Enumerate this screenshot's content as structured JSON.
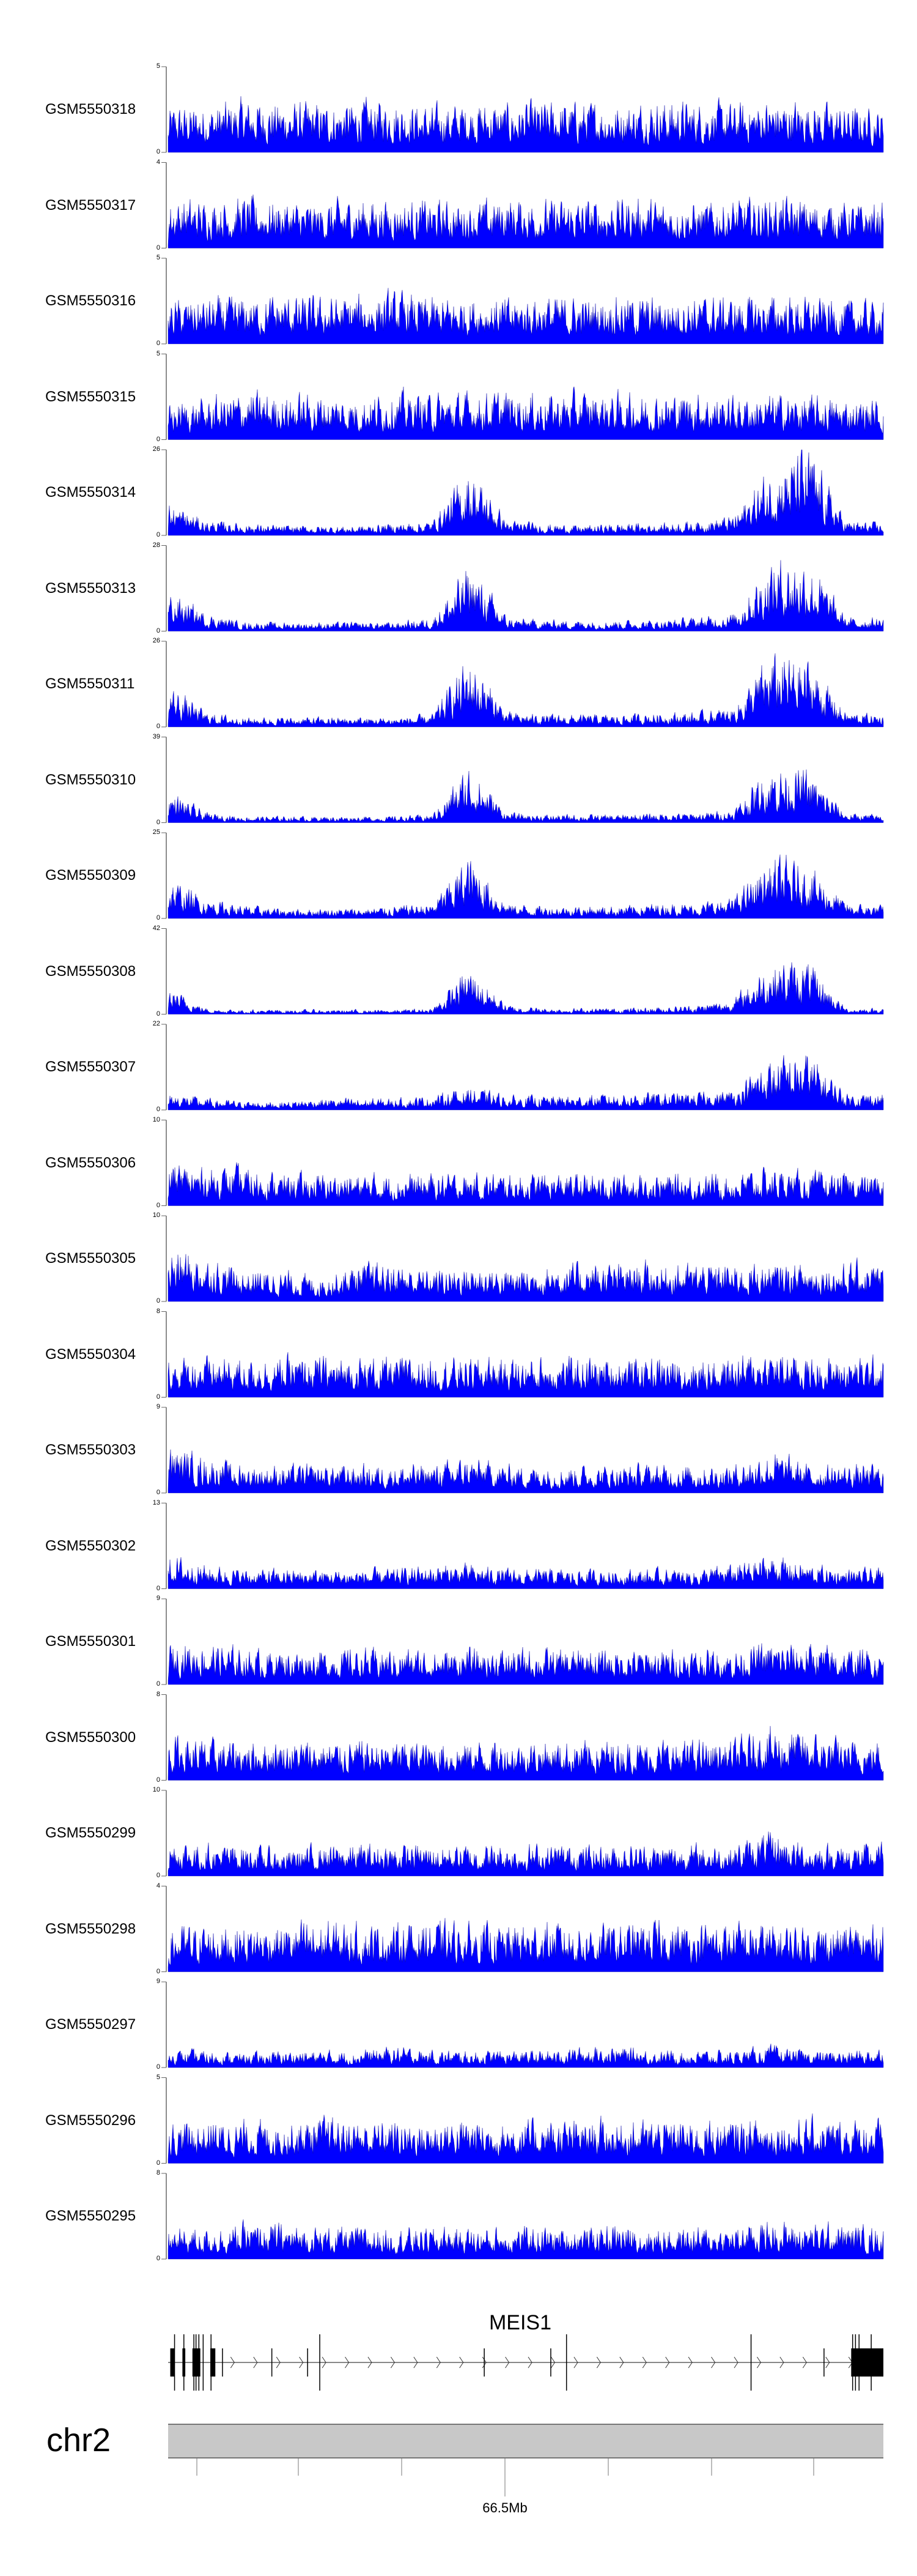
{
  "chart_data": {
    "type": "area",
    "title": "",
    "chromosome": "chr2",
    "gene": "MEIS1",
    "axis_tick_labels": [
      "66.5Mb"
    ],
    "ymin": 0,
    "fill_color": "#0000ff",
    "tracks": [
      {
        "name": "GSM5550318",
        "ymax": 5,
        "profile": [
          1.8,
          1.9,
          2.1,
          2,
          1.9,
          2,
          2.1,
          1.8,
          2,
          1.9,
          2,
          2,
          1.9,
          2.1,
          2,
          1.9,
          2.1,
          2,
          1.8,
          1.7
        ]
      },
      {
        "name": "GSM5550317",
        "ymax": 4,
        "profile": [
          1.6,
          1.5,
          1.6,
          1.5,
          1.4,
          1.6,
          1.5,
          1.5,
          1.4,
          1.6,
          1.5,
          1.5,
          1.6,
          1.5,
          1.4,
          1.5,
          1.6,
          1.5,
          1.4,
          1.4
        ]
      },
      {
        "name": "GSM5550316",
        "ymax": 5,
        "profile": [
          1.7,
          1.8,
          1.8,
          1.9,
          1.8,
          1.9,
          2,
          1.8,
          1.9,
          1.8,
          1.9,
          1.8,
          1.9,
          1.8,
          1.9,
          1.8,
          1.9,
          1.8,
          1.7,
          1.7
        ]
      },
      {
        "name": "GSM5550315",
        "ymax": 5,
        "profile": [
          1.5,
          1.6,
          1.9,
          1.8,
          1.8,
          1.7,
          1.9,
          1.8,
          1.8,
          1.9,
          1.8,
          1.9,
          1.8,
          1.8,
          1.9,
          1.7,
          1.8,
          1.7,
          1.6,
          1.6
        ]
      },
      {
        "name": "GSM5550314",
        "ymax": 26,
        "profile": [
          7,
          3,
          2.5,
          2,
          2,
          2,
          2.5,
          3,
          14,
          3,
          2.5,
          2,
          2.5,
          2.5,
          3,
          4,
          14,
          18,
          3,
          2.5
        ]
      },
      {
        "name": "GSM5550313",
        "ymax": 28,
        "profile": [
          9,
          4,
          2,
          2,
          2,
          2,
          2,
          3,
          15,
          3,
          2.5,
          2.5,
          2.5,
          2.5,
          3,
          4,
          16,
          16,
          3,
          3
        ]
      },
      {
        "name": "GSM5550311",
        "ymax": 26,
        "profile": [
          9,
          3,
          2,
          2,
          2,
          2,
          2,
          2.5,
          15,
          3,
          2.5,
          2.5,
          2.5,
          3,
          3,
          4,
          15,
          14,
          3,
          2.5
        ]
      },
      {
        "name": "GSM5550310",
        "ymax": 39,
        "profile": [
          10,
          3,
          2,
          2,
          2,
          2,
          2,
          2.5,
          18,
          3,
          2.5,
          2.5,
          2.5,
          3,
          3,
          4,
          18,
          16,
          3,
          2.5
        ]
      },
      {
        "name": "GSM5550309",
        "ymax": 25,
        "profile": [
          8,
          4,
          2.5,
          2,
          2,
          2,
          2.5,
          3,
          13,
          3,
          2.5,
          2.5,
          2.5,
          3,
          3,
          4,
          12,
          11,
          3,
          2.5
        ]
      },
      {
        "name": "GSM5550308",
        "ymax": 42,
        "profile": [
          9,
          2,
          1.5,
          1.5,
          1.5,
          1.5,
          1.5,
          2,
          16,
          3,
          2,
          2,
          2,
          2.5,
          3,
          5,
          18,
          17,
          2,
          2
        ]
      },
      {
        "name": "GSM5550307",
        "ymax": 22,
        "profile": [
          3,
          2,
          1.5,
          1.5,
          2,
          2,
          2,
          2.5,
          4,
          2.5,
          2.5,
          2.5,
          3,
          3,
          3,
          3.5,
          9,
          10,
          3,
          3
        ]
      },
      {
        "name": "GSM5550306",
        "ymax": 10,
        "profile": [
          3.5,
          3,
          3,
          2.5,
          2.5,
          2.5,
          2.5,
          2.5,
          2.5,
          2.5,
          2.5,
          2.5,
          2.5,
          2.5,
          2.5,
          2.5,
          3,
          2.5,
          2.5,
          2.5
        ]
      },
      {
        "name": "GSM5550305",
        "ymax": 10,
        "profile": [
          4.5,
          3.5,
          2.5,
          2.5,
          2,
          3,
          3,
          2.5,
          3,
          2.5,
          3,
          3,
          3,
          3,
          3,
          3,
          3,
          3,
          3,
          3
        ]
      },
      {
        "name": "GSM5550304",
        "ymax": 8,
        "profile": [
          2.5,
          2.5,
          2.5,
          2.5,
          2.5,
          2.5,
          2.5,
          2.5,
          2.5,
          2.5,
          2.5,
          2.5,
          2.5,
          2.5,
          2.5,
          2.5,
          3,
          2.5,
          2.5,
          2.5
        ]
      },
      {
        "name": "GSM5550303",
        "ymax": 9,
        "profile": [
          3.5,
          2.5,
          2,
          2,
          2,
          2,
          2,
          2,
          2.5,
          2,
          2,
          2,
          2,
          2,
          2,
          2,
          3,
          2,
          2,
          2
        ]
      },
      {
        "name": "GSM5550302",
        "ymax": 13,
        "profile": [
          3.5,
          2.5,
          2,
          2,
          2,
          2,
          2,
          2.5,
          2.5,
          2,
          2,
          2,
          2,
          2,
          2,
          2.5,
          3.5,
          2.5,
          2,
          2
        ]
      },
      {
        "name": "GSM5550301",
        "ymax": 9,
        "profile": [
          3,
          3,
          2.5,
          2.5,
          2.5,
          2.5,
          2.5,
          2.5,
          2.5,
          2.5,
          2.5,
          2.5,
          2.5,
          2.5,
          2.5,
          2.5,
          3,
          3,
          2.5,
          2.5
        ]
      },
      {
        "name": "GSM5550300",
        "ymax": 8,
        "profile": [
          3,
          2.5,
          2.5,
          2.5,
          2.5,
          2.5,
          2.5,
          2.5,
          2.5,
          2.5,
          2.5,
          2.5,
          2.5,
          2.5,
          2.5,
          2.5,
          3.5,
          3,
          2.5,
          2.5
        ]
      },
      {
        "name": "GSM5550299",
        "ymax": 10,
        "profile": [
          3,
          2.5,
          2.5,
          2,
          2.5,
          2.5,
          2.5,
          2.5,
          2.5,
          2.5,
          2.5,
          2.5,
          2.5,
          2.5,
          2.5,
          2.5,
          3.5,
          2.5,
          2.5,
          2.5
        ]
      },
      {
        "name": "GSM5550298",
        "ymax": 4,
        "profile": [
          1.4,
          1.5,
          1.5,
          1.5,
          1.6,
          1.5,
          1.5,
          1.6,
          1.5,
          1.5,
          1.6,
          1.5,
          1.5,
          1.6,
          1.5,
          1.6,
          1.5,
          1.5,
          1.5,
          1.5
        ]
      },
      {
        "name": "GSM5550297",
        "ymax": 9,
        "profile": [
          1.2,
          1.2,
          1,
          1.2,
          1.2,
          1.2,
          1.5,
          1.2,
          1.2,
          1.2,
          1.2,
          1.5,
          1.5,
          1.2,
          1.2,
          1.2,
          1.5,
          1.2,
          1.2,
          1.5
        ]
      },
      {
        "name": "GSM5550296",
        "ymax": 5,
        "profile": [
          1.6,
          1.7,
          1.7,
          1.7,
          1.8,
          1.7,
          1.7,
          1.7,
          1.8,
          1.7,
          1.7,
          1.7,
          1.7,
          1.7,
          1.7,
          1.7,
          1.8,
          1.7,
          1.7,
          1.7
        ]
      },
      {
        "name": "GSM5550295",
        "ymax": 8,
        "profile": [
          2,
          2,
          2.2,
          2.2,
          2,
          2,
          2,
          2,
          2,
          2,
          2,
          2,
          2.2,
          2,
          2,
          2,
          2.5,
          2.2,
          2.2,
          2
        ]
      }
    ]
  }
}
